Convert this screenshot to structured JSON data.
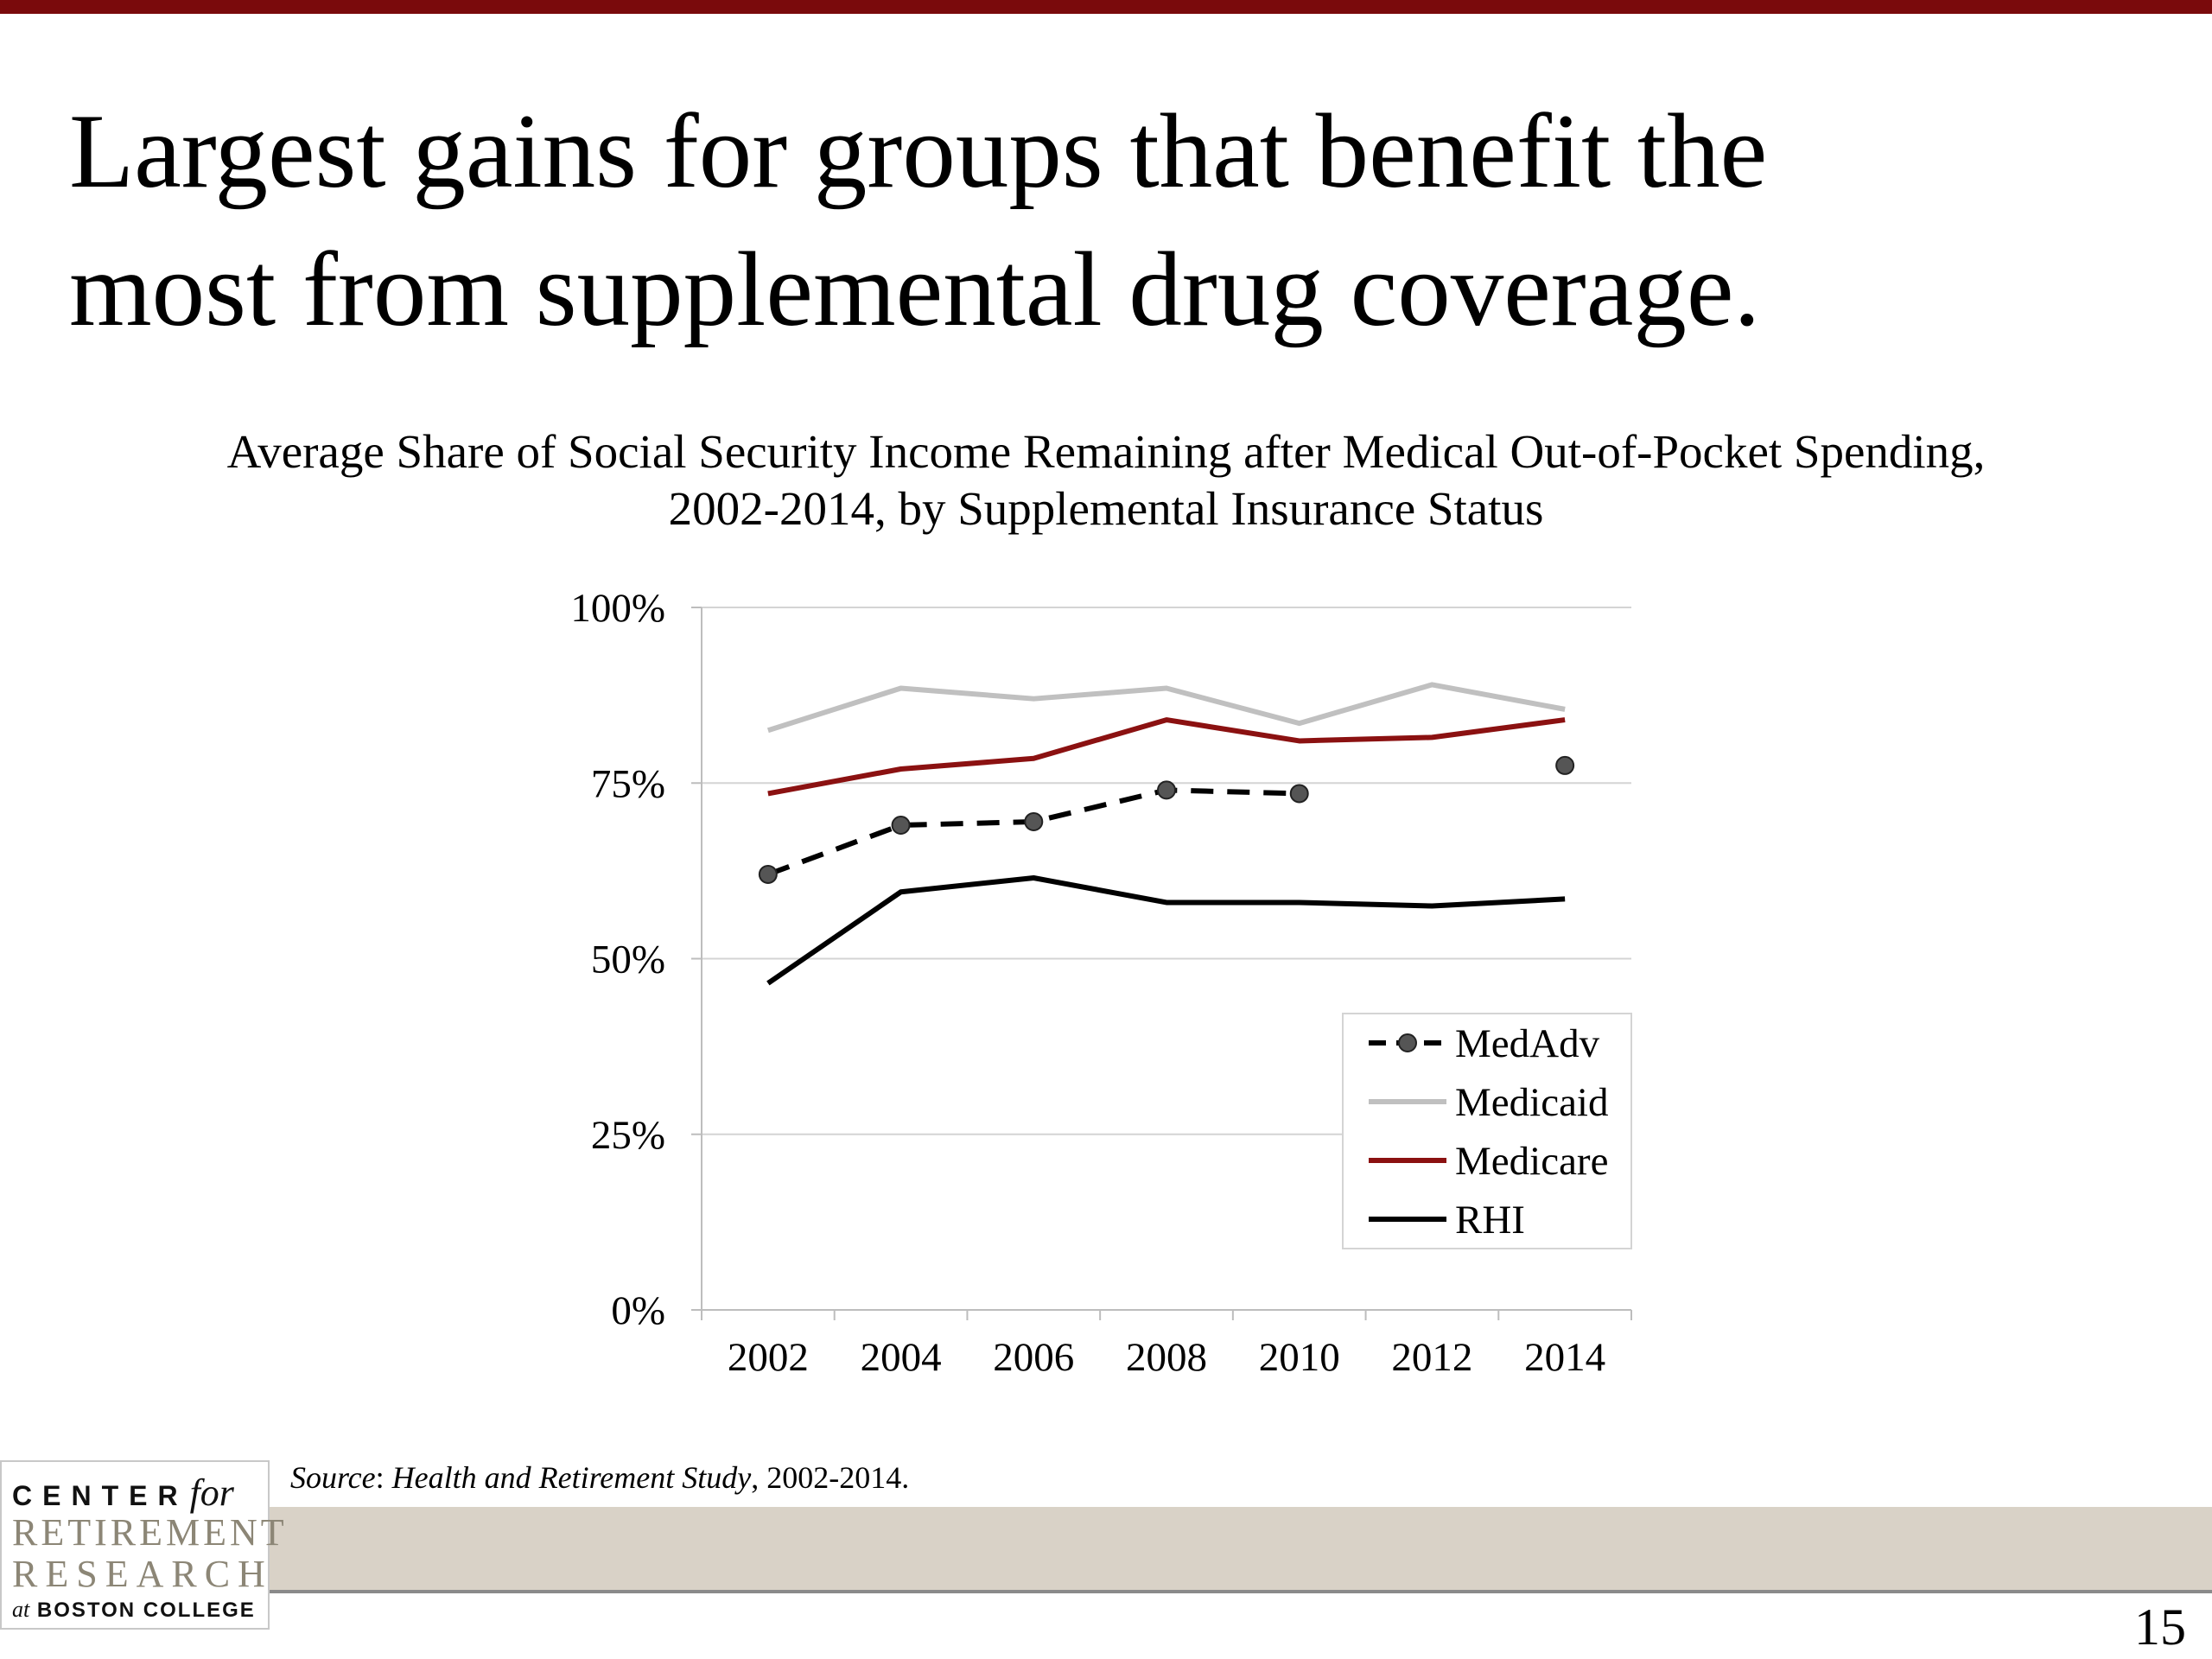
{
  "slide": {
    "title_lines": [
      "Largest gains for groups that benefit the",
      "most from supplemental drug coverage."
    ],
    "source_label": "Source",
    "source_sep": ": ",
    "source_study": "Health and Retirement Study",
    "source_years": ", 2002-2014.",
    "page_number": "15"
  },
  "logo": {
    "line1": "CENTER",
    "line1_for": "for",
    "line2": "RETIREMENT",
    "line3": "RESEARCH",
    "line4_at": "at",
    "line4": "BOSTON COLLEGE"
  },
  "colors": {
    "top_bar": "#7a0a0c",
    "footer_band": "#d9d2c7",
    "medadv": "#000000",
    "medicaid": "#c0c0c0",
    "medicare": "#8b1111",
    "rhi": "#000000"
  },
  "chart_data": {
    "type": "line",
    "title_lines": [
      "Average Share of Social Security Income Remaining after Medical Out-of-Pocket Spending,",
      "2002-2014, by Supplemental Insurance Status"
    ],
    "x": [
      2002,
      2004,
      2006,
      2008,
      2010,
      2012,
      2014
    ],
    "x_tick_labels": [
      "2002",
      "2004",
      "2006",
      "2008",
      "2010",
      "2012",
      "2014"
    ],
    "y_ticks": [
      0,
      25,
      50,
      75,
      100
    ],
    "y_tick_labels": [
      "0%",
      "25%",
      "50%",
      "75%",
      "100%"
    ],
    "ylim": [
      0,
      100
    ],
    "grid": true,
    "legend_position": "bottom-right",
    "series": [
      {
        "name": "MedAdv",
        "key": "medadv",
        "style": "dashed-markers",
        "values": [
          62,
          69,
          69.5,
          74,
          73.5,
          null,
          77.5
        ]
      },
      {
        "name": "Medicaid",
        "key": "medicaid",
        "style": "solid",
        "values": [
          82.5,
          88.5,
          87,
          88.5,
          83.5,
          89,
          85.5
        ]
      },
      {
        "name": "Medicare",
        "key": "medicare",
        "style": "solid",
        "values": [
          73.5,
          77,
          78.5,
          84,
          81,
          81.5,
          84
        ]
      },
      {
        "name": "RHI",
        "key": "rhi",
        "style": "solid",
        "values": [
          46.5,
          59.5,
          61.5,
          58,
          58,
          57.5,
          58.5
        ]
      }
    ]
  }
}
